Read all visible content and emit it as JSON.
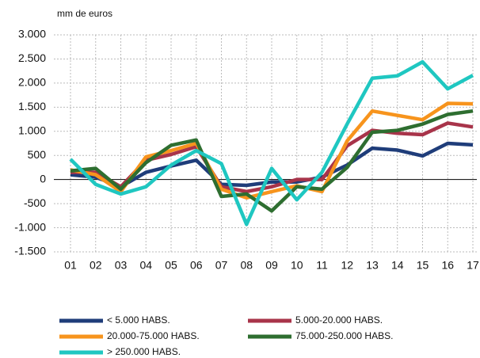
{
  "chart_data": {
    "type": "line",
    "y_label": "mm de euros",
    "categories": [
      "01",
      "02",
      "03",
      "04",
      "05",
      "06",
      "07",
      "08",
      "09",
      "10",
      "11",
      "12",
      "13",
      "14",
      "15",
      "16",
      "17"
    ],
    "ylim": [
      -1500,
      3000
    ],
    "yticks": [
      {
        "value": -1500,
        "label": "-1.500"
      },
      {
        "value": -1000,
        "label": "-1.000"
      },
      -500,
      0,
      500,
      {
        "value": 1000,
        "label": "1.000"
      },
      {
        "value": 1500,
        "label": "1.500"
      },
      {
        "value": 2000,
        "label": "2.000"
      },
      {
        "value": 2500,
        "label": "2.500"
      },
      {
        "value": 3000,
        "label": "3.000"
      }
    ],
    "grid": true,
    "series": [
      {
        "name": "< 5.000 HABS.",
        "color": "#1f3d7a",
        "values": [
          100,
          50,
          -150,
          150,
          280,
          400,
          -100,
          -120,
          -50,
          -50,
          50,
          300,
          650,
          610,
          490,
          750,
          720
        ]
      },
      {
        "name": "5.000-20.000 HABS.",
        "color": "#a8344a",
        "values": [
          150,
          150,
          -150,
          400,
          520,
          680,
          -150,
          -250,
          -150,
          0,
          0,
          700,
          1020,
          960,
          930,
          1170,
          1090
        ]
      },
      {
        "name": "20.000-75.000 HABS.",
        "color": "#f7941d",
        "values": [
          200,
          100,
          -250,
          470,
          600,
          750,
          -200,
          -380,
          -250,
          -130,
          -250,
          800,
          1420,
          1330,
          1240,
          1580,
          1570
        ]
      },
      {
        "name": "75.000-250.000 HABS.",
        "color": "#2e6e30",
        "values": [
          180,
          230,
          -200,
          350,
          710,
          820,
          -350,
          -300,
          -650,
          -150,
          -200,
          250,
          980,
          1020,
          1150,
          1350,
          1420
        ]
      },
      {
        "name": "> 250.000 HABS.",
        "color": "#1fc7c1",
        "values": [
          420,
          -100,
          -300,
          -150,
          300,
          600,
          330,
          -930,
          230,
          -420,
          150,
          1150,
          2100,
          2150,
          2440,
          1880,
          2160
        ]
      }
    ]
  }
}
